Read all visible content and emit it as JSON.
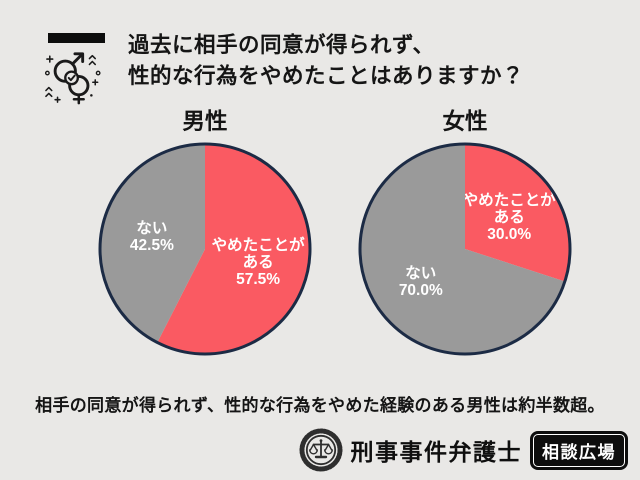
{
  "page": {
    "title_line1": "過去に相手の同意が得られず、",
    "title_line2": "性的な行為をやめたことはありますか？",
    "note": "相手の同意が得られず、性的な行為をやめた経験のある男性は約半数超。"
  },
  "footer": {
    "brand": "刑事事件弁護士",
    "badge": "相談広場"
  },
  "icons": {
    "header": "gender-symbols-with-checkmark-icon",
    "footer_logo": "scales-of-justice-stamp-icon"
  },
  "colors": {
    "background": "#e9e8e6",
    "accent_red": "#fa5a62",
    "neutral_gray": "#9a9a9a",
    "pie_border_navy": "#1c2b45",
    "slice_label": "#ffffff",
    "text_dark": "#151515"
  },
  "chart_data": [
    {
      "type": "pie",
      "title": "男性",
      "start_angle_deg": 0,
      "direction": "clockwise",
      "legend": "labels drawn on slices",
      "slices": [
        {
          "label": "やめたことがある",
          "label_lines": [
            "やめたことが",
            "ある"
          ],
          "value_percent": 57.5,
          "percent_text": "57.5%",
          "color": "#fa5a62"
        },
        {
          "label": "ない",
          "label_lines": [
            "ない"
          ],
          "value_percent": 42.5,
          "percent_text": "42.5%",
          "color": "#9a9a9a"
        }
      ]
    },
    {
      "type": "pie",
      "title": "女性",
      "start_angle_deg": 0,
      "direction": "clockwise",
      "legend": "labels drawn on slices",
      "slices": [
        {
          "label": "やめたことがある",
          "label_lines": [
            "やめたことが",
            "ある"
          ],
          "value_percent": 30.0,
          "percent_text": "30.0%",
          "color": "#fa5a62"
        },
        {
          "label": "ない",
          "label_lines": [
            "ない"
          ],
          "value_percent": 70.0,
          "percent_text": "70.0%",
          "color": "#9a9a9a"
        }
      ]
    }
  ]
}
